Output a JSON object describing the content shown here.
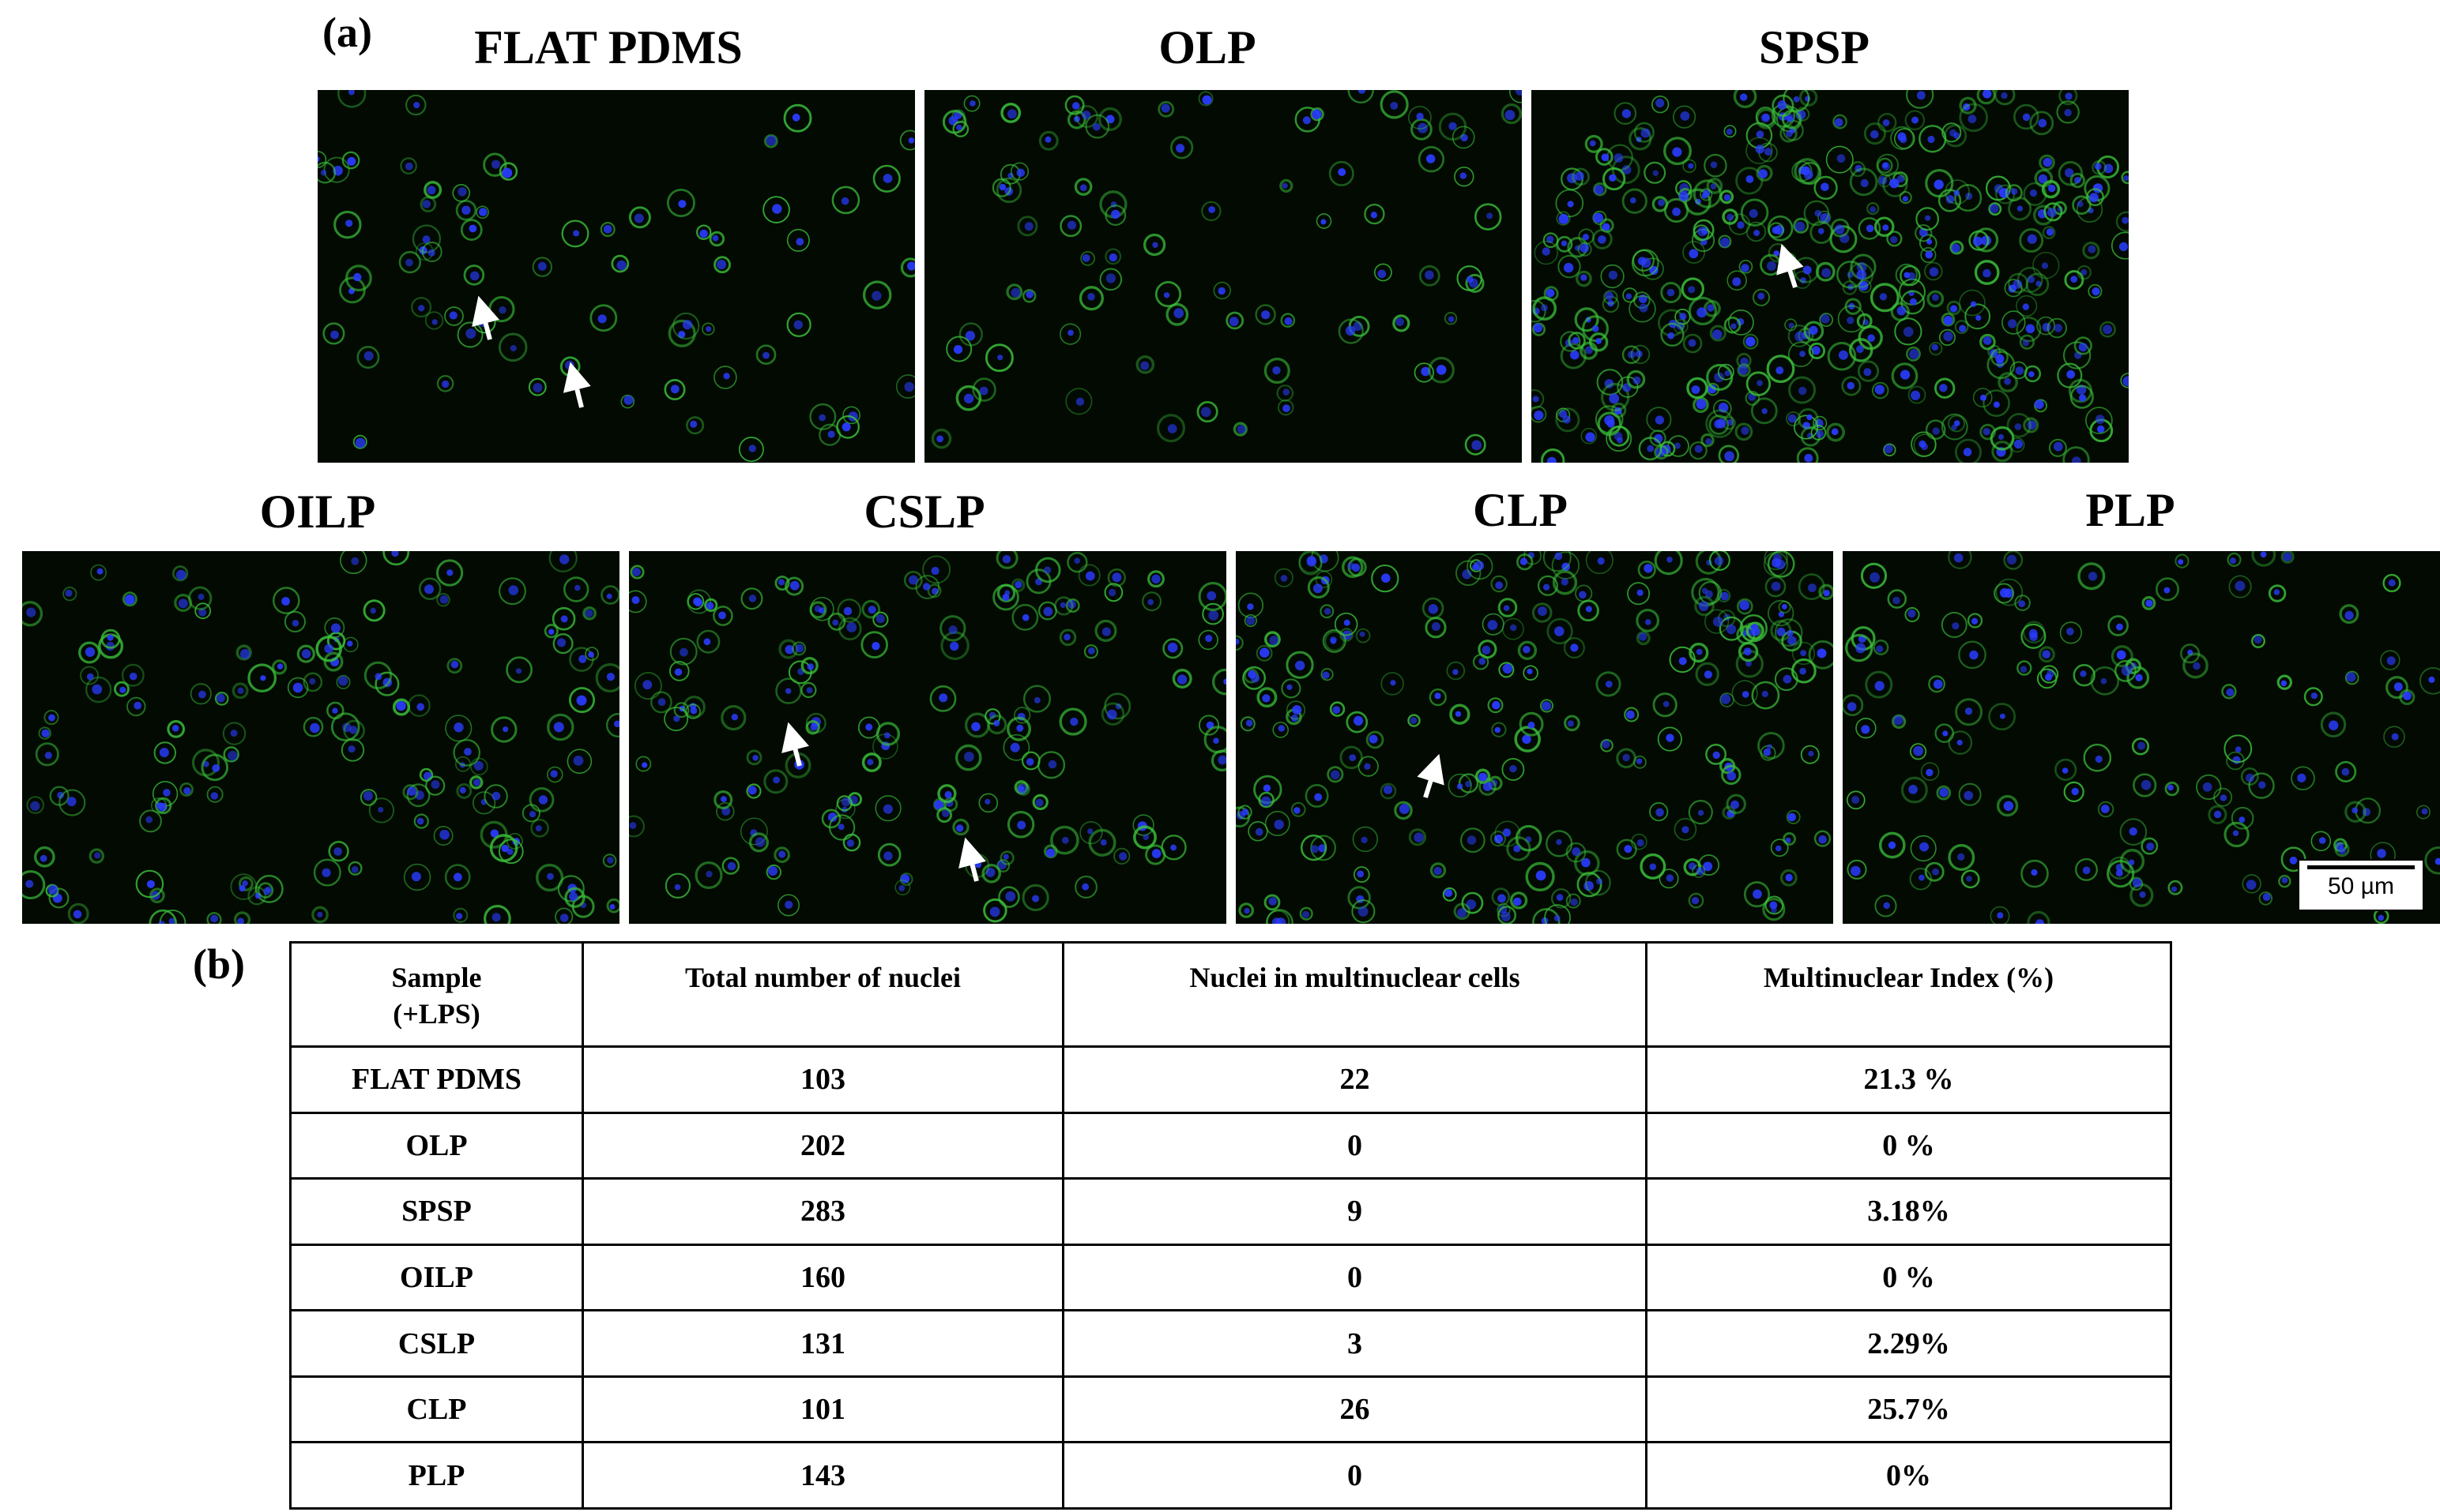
{
  "panel_a_label": "(a)",
  "panel_b_label": "(b)",
  "images": [
    {
      "title": "FLAT PDMS"
    },
    {
      "title": "OLP"
    },
    {
      "title": "SPSP"
    },
    {
      "title": "OILP"
    },
    {
      "title": "CSLP"
    },
    {
      "title": "CLP"
    },
    {
      "title": "PLP"
    }
  ],
  "scale_bar": "50 µm",
  "table": {
    "headers": [
      "Sample\n(+LPS)",
      "Total number of nuclei",
      "Nuclei in multinuclear  cells",
      "Multinuclear  Index (%)"
    ],
    "rows": [
      [
        "FLAT PDMS",
        "103",
        "22",
        "21.3 %"
      ],
      [
        "OLP",
        "202",
        "0",
        "0 %"
      ],
      [
        "SPSP",
        "283",
        "9",
        "3.18%"
      ],
      [
        "OILP",
        "160",
        "0",
        "0 %"
      ],
      [
        "CSLP",
        "131",
        "3",
        "2.29%"
      ],
      [
        "CLP",
        "101",
        "26",
        "25.7%"
      ],
      [
        "PLP",
        "143",
        "0",
        "0%"
      ]
    ]
  },
  "colors": {
    "nuclei": "#2a3cff",
    "cytoskeleton": "#3cc23c",
    "background": "#000000"
  }
}
